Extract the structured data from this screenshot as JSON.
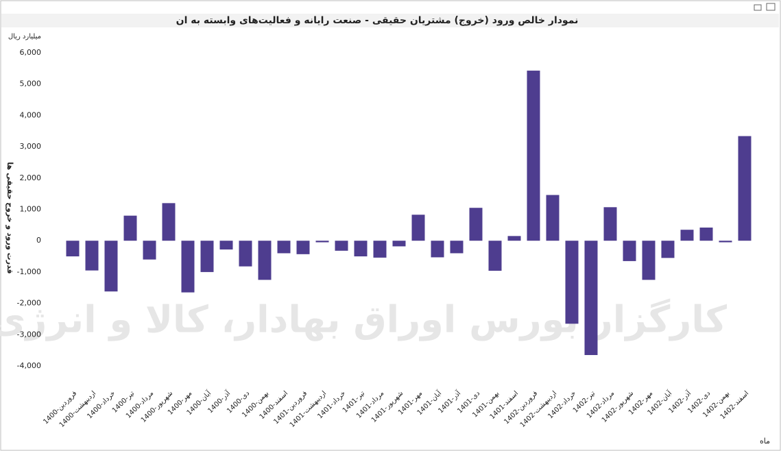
{
  "chart_data": {
    "type": "bar",
    "title": "نمودار خالص ورود (خروج) مشتریان حقیقی - صنعت رایانه و فعالیت‌های وابسته به ان",
    "unit_label": "میلیارد ریال",
    "y_label": "قدرت ورود و خروج حقیقی ها",
    "x_label": "ماه",
    "watermark": "کارگزار بورس اوراق بهادار، کالا و انرژی",
    "color": "#4e3d8f",
    "categories": [
      "1400-فروردین",
      "1400-اردیبهشت",
      "1400-خرداد",
      "1400-تیر",
      "1400-مرداد",
      "1400-شهریور",
      "1400-مهر",
      "1400-آبان",
      "1400-آذر",
      "1400-دی",
      "1400-بهمن",
      "1400-اسفند",
      "1401-فروردین",
      "1401-اردیبهشت",
      "1401-خرداد",
      "1401-تیر",
      "1401-مرداد",
      "1401-شهریور",
      "1401-مهر",
      "1401-آبان",
      "1401-آذر",
      "1401-دی",
      "1401-بهمن",
      "1401-اسفند",
      "1402-فروردین",
      "1402-اردیبهشت",
      "1402-خرداد",
      "1402-تیر",
      "1402-مرداد",
      "1402-شهریور",
      "1402-مهر",
      "1402-آبان",
      "1402-آذر",
      "1402-دی",
      "1402-بهمن",
      "1402-اسفند"
    ],
    "values": [
      -500,
      -950,
      -1620,
      800,
      -600,
      1200,
      -1650,
      -1000,
      -280,
      -820,
      -1250,
      -400,
      -430,
      -50,
      -320,
      -500,
      -540,
      -180,
      830,
      -530,
      -400,
      1050,
      -960,
      150,
      5430,
      1460,
      -2650,
      -3650,
      1070,
      -650,
      -1250,
      -550,
      350,
      420,
      -50,
      3340
    ],
    "ylim": [
      -4000,
      6000
    ],
    "yticks": [
      {
        "value": -4000,
        "label": "-4,000"
      },
      {
        "value": -3000,
        "label": "-3,000"
      },
      {
        "value": -2000,
        "label": "-2,000"
      },
      {
        "value": -1000,
        "label": "-1,000"
      },
      0,
      {
        "value": 1000,
        "label": "1,000"
      },
      {
        "value": 2000,
        "label": "2,000"
      },
      {
        "value": 3000,
        "label": "3,000"
      },
      {
        "value": 4000,
        "label": "4,000"
      },
      {
        "value": 5000,
        "label": "5,000"
      },
      {
        "value": 6000,
        "label": "6,000"
      }
    ],
    "grid": false
  }
}
